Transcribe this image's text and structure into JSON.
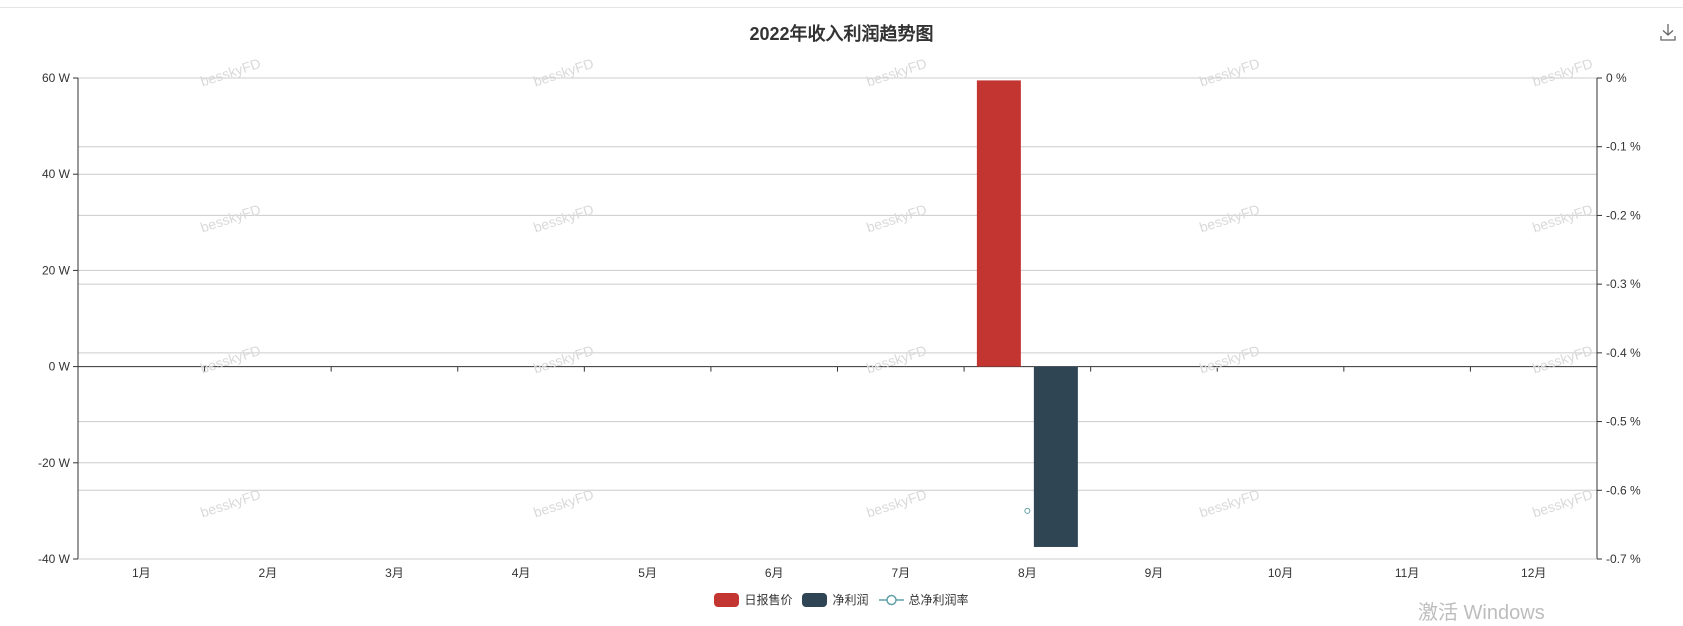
{
  "chart_data": {
    "type": "bar",
    "title": "2022年收入利润趋势图",
    "categories": [
      "1月",
      "2月",
      "3月",
      "4月",
      "5月",
      "6月",
      "7月",
      "8月",
      "9月",
      "10月",
      "11月",
      "12月"
    ],
    "y_left": {
      "min": -40,
      "max": 60,
      "ticks": [
        60,
        40,
        20,
        0,
        -20,
        -40
      ],
      "tick_labels": [
        "60 W",
        "40 W",
        "20 W",
        "0 W",
        "-20 W",
        "-40 W"
      ]
    },
    "y_right": {
      "min": -0.7,
      "max": 0,
      "ticks": [
        0,
        -0.1,
        -0.2,
        -0.3,
        -0.4,
        -0.5,
        -0.6,
        -0.7
      ],
      "tick_labels": [
        "0 %",
        "-0.1 %",
        "-0.2 %",
        "-0.3 %",
        "-0.4 %",
        "-0.5 %",
        "-0.6 %",
        "-0.7 %"
      ]
    },
    "series": [
      {
        "name": "日报售价",
        "type": "bar",
        "axis": "left",
        "color": "#c23531",
        "values": [
          0,
          0,
          0,
          0,
          0,
          0,
          0,
          59.5,
          0,
          0,
          0,
          0
        ]
      },
      {
        "name": "净利润",
        "type": "bar",
        "axis": "left",
        "color": "#2f4554",
        "values": [
          0,
          0,
          0,
          0,
          0,
          0,
          0,
          -37.5,
          0,
          0,
          0,
          0
        ]
      },
      {
        "name": "总净利润率",
        "type": "line",
        "axis": "right",
        "color": "#61a0a8",
        "values": [
          null,
          null,
          null,
          null,
          null,
          null,
          null,
          -0.63,
          null,
          null,
          null,
          null
        ]
      }
    ],
    "legend_position": "bottom-center",
    "grid": true
  },
  "watermark_text": "besskyFD",
  "os_watermark": "激活 Windows",
  "colors": {
    "axis": "#333333",
    "grid": "#cccccc"
  }
}
